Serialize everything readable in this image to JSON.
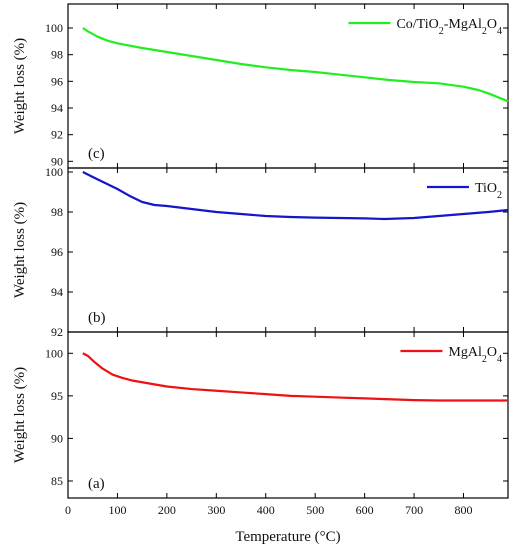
{
  "chart_data": {
    "type": "line",
    "xlabel": "Temperature (°C)",
    "xlim": [
      0,
      890
    ],
    "xticks": [
      "0",
      "100",
      "200",
      "300",
      "400",
      "500",
      "600",
      "700",
      "800"
    ],
    "panels": [
      {
        "id": "c",
        "panel_label": "(c)",
        "ylabel": "Weight loss (%)",
        "ylim": [
          89.5,
          101.8
        ],
        "yticks": [
          "90",
          "92",
          "94",
          "96",
          "98",
          "100"
        ],
        "legend_position": "top-right",
        "series": [
          {
            "name": "Co/TiO2-MgAl2O4",
            "legend_parts": [
              {
                "t": "Co/TiO"
              },
              {
                "t": "2",
                "sub": true
              },
              {
                "t": "-MgAl"
              },
              {
                "t": "2",
                "sub": true
              },
              {
                "t": "O"
              },
              {
                "t": "4",
                "sub": true
              }
            ],
            "color": "#22ee22",
            "x": [
              30,
              40,
              60,
              80,
              100,
              150,
              200,
              250,
              300,
              350,
              400,
              450,
              500,
              550,
              600,
              650,
              700,
              750,
              800,
              830,
              850,
              870,
              890
            ],
            "y": [
              100.0,
              99.75,
              99.35,
              99.05,
              98.85,
              98.5,
              98.2,
              97.9,
              97.6,
              97.3,
              97.05,
              96.85,
              96.7,
              96.5,
              96.3,
              96.1,
              95.95,
              95.85,
              95.6,
              95.35,
              95.1,
              94.8,
              94.5
            ]
          }
        ]
      },
      {
        "id": "b",
        "panel_label": "(b)",
        "ylabel": "Weight loss (%)",
        "ylim": [
          92,
          100.2
        ],
        "yticks": [
          "92",
          "94",
          "96",
          "98",
          "100"
        ],
        "legend_position": "top-right",
        "series": [
          {
            "name": "TiO2",
            "legend_parts": [
              {
                "t": "TiO"
              },
              {
                "t": "2",
                "sub": true
              }
            ],
            "color": "#1515cc",
            "x": [
              30,
              50,
              75,
              100,
              125,
              150,
              175,
              200,
              250,
              300,
              350,
              400,
              450,
              500,
              550,
              600,
              640,
              700,
              750,
              800,
              850,
              890
            ],
            "y": [
              100.0,
              99.75,
              99.45,
              99.15,
              98.8,
              98.5,
              98.35,
              98.3,
              98.15,
              98.0,
              97.9,
              97.8,
              97.75,
              97.72,
              97.7,
              97.68,
              97.65,
              97.7,
              97.8,
              97.9,
              98.0,
              98.1
            ]
          }
        ]
      },
      {
        "id": "a",
        "panel_label": "(a)",
        "ylabel": "Weight loss (%)",
        "ylim": [
          83,
          102.5
        ],
        "yticks": [
          "85",
          "90",
          "95",
          "100"
        ],
        "legend_position": "top-right",
        "series": [
          {
            "name": "MgAl2O4",
            "legend_parts": [
              {
                "t": "MgAl"
              },
              {
                "t": "2",
                "sub": true
              },
              {
                "t": "O"
              },
              {
                "t": "4",
                "sub": true
              }
            ],
            "color": "#ee1111",
            "x": [
              30,
              40,
              55,
              70,
              90,
              110,
              130,
              150,
              200,
              250,
              300,
              350,
              400,
              450,
              500,
              550,
              600,
              650,
              700,
              750,
              800,
              850,
              890
            ],
            "y": [
              100.0,
              99.7,
              98.9,
              98.2,
              97.5,
              97.1,
              96.8,
              96.6,
              96.1,
              95.8,
              95.6,
              95.4,
              95.2,
              95.0,
              94.9,
              94.8,
              94.7,
              94.6,
              94.5,
              94.45,
              94.45,
              94.45,
              94.45
            ]
          }
        ]
      }
    ]
  }
}
